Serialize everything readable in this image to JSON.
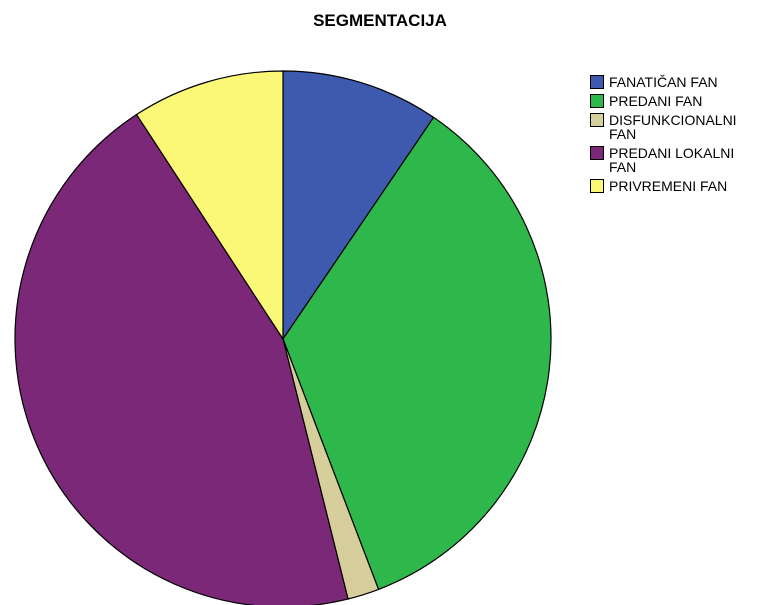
{
  "chart_data": {
    "type": "pie",
    "title": "SEGMENTACIJA",
    "categories": [
      "FANATIČAN FAN",
      "PREDANI FAN",
      "DISFUNKCIONALNI FAN",
      "PREDANI LOKALNI FAN",
      "PRIVREMENI FAN"
    ],
    "values": [
      9.5,
      34.7,
      1.9,
      44.7,
      9.2
    ],
    "colors": [
      "#3d5aae",
      "#2eb84b",
      "#d7cf9b",
      "#7b2878",
      "#fbf777"
    ],
    "legend": "right"
  }
}
